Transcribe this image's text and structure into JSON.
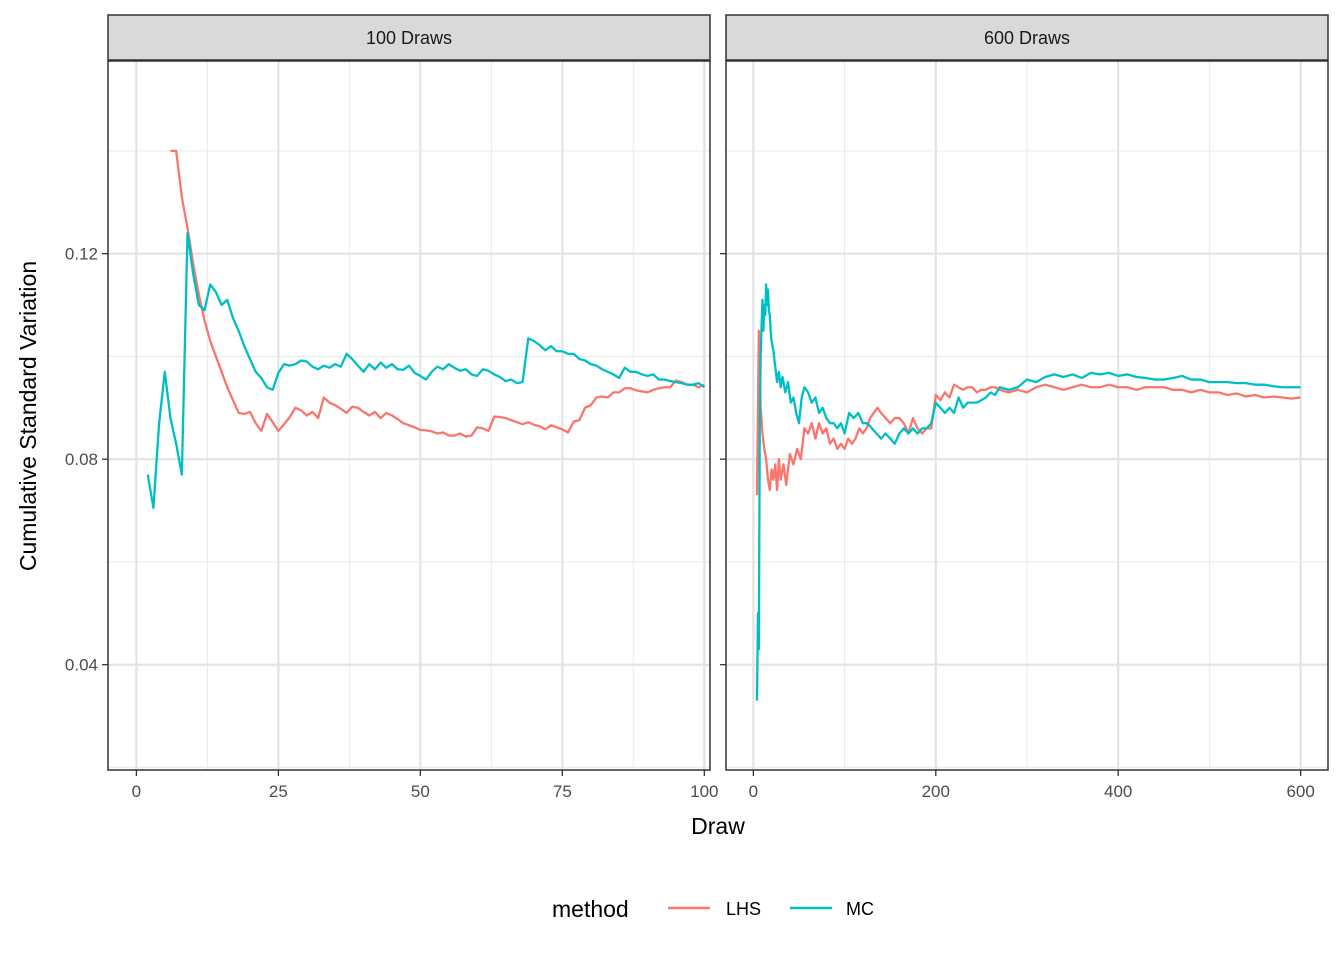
{
  "chart_data": {
    "type": "line",
    "xlabel": "Draw",
    "ylabel": "Cumulative Standard Variation",
    "legend": {
      "title": "method",
      "placement": "bottom",
      "entries": [
        {
          "name": "LHS",
          "color": "#F8766D"
        },
        {
          "name": "MC",
          "color": "#00BFC4"
        }
      ]
    },
    "grid": true,
    "ylim": [
      0.0195,
      0.1575
    ],
    "yticks": [
      0.04,
      0.08,
      0.12
    ],
    "ytick_labels": [
      "0.04",
      "0.08",
      "0.12"
    ],
    "panels": [
      {
        "strip": "100 Draws",
        "xlim": [
          -5,
          101
        ],
        "xticks": [
          0,
          25,
          50,
          75,
          100
        ],
        "xtick_labels": [
          "0",
          "25",
          "50",
          "75",
          "100"
        ],
        "series": [
          {
            "name": "LHS",
            "color": "#F8766D",
            "x": [
              6,
              7,
              8,
              9,
              10,
              11,
              12,
              13,
              14,
              15,
              16,
              17,
              18,
              19,
              20,
              21,
              22,
              23,
              24,
              25,
              26,
              27,
              28,
              29,
              30,
              31,
              32,
              33,
              34,
              35,
              36,
              37,
              38,
              39,
              40,
              41,
              42,
              43,
              44,
              45,
              46,
              47,
              48,
              49,
              50,
              51,
              52,
              53,
              54,
              55,
              56,
              57,
              58,
              59,
              60,
              61,
              62,
              63,
              64,
              65,
              66,
              67,
              68,
              69,
              70,
              71,
              72,
              73,
              74,
              75,
              76,
              77,
              78,
              79,
              80,
              81,
              82,
              83,
              84,
              85,
              86,
              87,
              88,
              89,
              90,
              91,
              92,
              93,
              94,
              95,
              96,
              97,
              98,
              99,
              100
            ],
            "y": [
              0.14,
              0.14,
              0.131,
              0.125,
              0.118,
              0.112,
              0.107,
              0.103,
              0.1,
              0.097,
              0.094,
              0.0915,
              0.089,
              0.0888,
              0.0892,
              0.087,
              0.0855,
              0.0888,
              0.0872,
              0.0855,
              0.0868,
              0.0882,
              0.09,
              0.0895,
              0.0885,
              0.0892,
              0.088,
              0.092,
              0.091,
              0.0905,
              0.0898,
              0.089,
              0.0902,
              0.09,
              0.0892,
              0.0885,
              0.0892,
              0.088,
              0.089,
              0.0885,
              0.0878,
              0.087,
              0.0866,
              0.0862,
              0.0857,
              0.0856,
              0.0854,
              0.085,
              0.0852,
              0.0846,
              0.0846,
              0.085,
              0.0844,
              0.0846,
              0.0862,
              0.086,
              0.0855,
              0.0883,
              0.0882,
              0.088,
              0.0876,
              0.0872,
              0.0868,
              0.0872,
              0.0867,
              0.0864,
              0.0858,
              0.0866,
              0.0862,
              0.0858,
              0.0852,
              0.0873,
              0.0876,
              0.09,
              0.0905,
              0.092,
              0.0922,
              0.092,
              0.093,
              0.093,
              0.0938,
              0.0938,
              0.0934,
              0.0932,
              0.093,
              0.0935,
              0.0938,
              0.094,
              0.094,
              0.0953,
              0.095,
              0.0945,
              0.0945,
              0.094,
              0.0945
            ]
          },
          {
            "name": "MC",
            "color": "#00BFC4",
            "x": [
              2,
              3,
              4,
              5,
              6,
              7,
              8,
              9,
              10,
              11,
              12,
              13,
              14,
              15,
              16,
              17,
              18,
              19,
              20,
              21,
              22,
              23,
              24,
              25,
              26,
              27,
              28,
              29,
              30,
              31,
              32,
              33,
              34,
              35,
              36,
              37,
              38,
              39,
              40,
              41,
              42,
              43,
              44,
              45,
              46,
              47,
              48,
              49,
              50,
              51,
              52,
              53,
              54,
              55,
              56,
              57,
              58,
              59,
              60,
              61,
              62,
              63,
              64,
              65,
              66,
              67,
              68,
              69,
              70,
              71,
              72,
              73,
              74,
              75,
              76,
              77,
              78,
              79,
              80,
              81,
              82,
              83,
              84,
              85,
              86,
              87,
              88,
              89,
              90,
              91,
              92,
              93,
              94,
              95,
              96,
              97,
              98,
              99,
              100
            ],
            "y": [
              0.077,
              0.0705,
              0.087,
              0.097,
              0.088,
              0.083,
              0.077,
              0.124,
              0.116,
              0.11,
              0.109,
              0.114,
              0.1125,
              0.11,
              0.111,
              0.1075,
              0.105,
              0.102,
              0.0995,
              0.097,
              0.0958,
              0.094,
              0.0935,
              0.0968,
              0.0985,
              0.0982,
              0.0985,
              0.0992,
              0.099,
              0.098,
              0.0975,
              0.0982,
              0.0978,
              0.0985,
              0.098,
              0.1005,
              0.0995,
              0.0982,
              0.097,
              0.0985,
              0.0975,
              0.0988,
              0.0978,
              0.0985,
              0.0975,
              0.0974,
              0.0982,
              0.0968,
              0.0962,
              0.0955,
              0.097,
              0.098,
              0.0975,
              0.0985,
              0.0978,
              0.0972,
              0.0975,
              0.0965,
              0.0962,
              0.0975,
              0.0972,
              0.0965,
              0.096,
              0.0952,
              0.0955,
              0.0948,
              0.095,
              0.1035,
              0.103,
              0.1022,
              0.1012,
              0.102,
              0.101,
              0.101,
              0.1005,
              0.1005,
              0.0995,
              0.0992,
              0.0985,
              0.0982,
              0.0975,
              0.097,
              0.0965,
              0.0958,
              0.0978,
              0.097,
              0.097,
              0.0965,
              0.0962,
              0.0965,
              0.0955,
              0.0955,
              0.0952,
              0.095,
              0.0948,
              0.0945,
              0.0945,
              0.0948,
              0.094
            ]
          }
        ]
      },
      {
        "strip": "600 Draws",
        "xlim": [
          -30,
          630
        ],
        "xticks": [
          0,
          200,
          400,
          600
        ],
        "xtick_labels": [
          "0",
          "200",
          "400",
          "600"
        ],
        "series": [
          {
            "name": "LHS",
            "color": "#F8766D",
            "x": [
              4,
              6,
              8,
              10,
              12,
              14,
              16,
              18,
              20,
              22,
              24,
              26,
              28,
              30,
              33,
              36,
              40,
              44,
              48,
              52,
              56,
              60,
              64,
              68,
              72,
              76,
              80,
              84,
              88,
              92,
              96,
              100,
              104,
              108,
              112,
              116,
              120,
              124,
              128,
              132,
              136,
              140,
              145,
              150,
              155,
              160,
              165,
              170,
              175,
              180,
              185,
              190,
              195,
              200,
              205,
              210,
              215,
              220,
              225,
              230,
              235,
              240,
              245,
              250,
              255,
              260,
              265,
              270,
              280,
              290,
              300,
              310,
              320,
              330,
              340,
              350,
              360,
              370,
              380,
              390,
              400,
              410,
              420,
              430,
              440,
              450,
              460,
              470,
              480,
              490,
              500,
              510,
              520,
              530,
              540,
              550,
              560,
              570,
              580,
              590,
              600
            ],
            "y": [
              0.073,
              0.105,
              0.09,
              0.085,
              0.082,
              0.08,
              0.076,
              0.074,
              0.078,
              0.076,
              0.079,
              0.074,
              0.08,
              0.076,
              0.079,
              0.075,
              0.081,
              0.079,
              0.082,
              0.08,
              0.086,
              0.085,
              0.087,
              0.084,
              0.087,
              0.085,
              0.086,
              0.083,
              0.084,
              0.082,
              0.083,
              0.082,
              0.084,
              0.083,
              0.084,
              0.086,
              0.085,
              0.086,
              0.088,
              0.089,
              0.09,
              0.089,
              0.088,
              0.087,
              0.088,
              0.088,
              0.087,
              0.085,
              0.088,
              0.086,
              0.085,
              0.086,
              0.086,
              0.0925,
              0.0915,
              0.093,
              0.092,
              0.0945,
              0.094,
              0.0935,
              0.094,
              0.094,
              0.093,
              0.0935,
              0.0935,
              0.094,
              0.094,
              0.0935,
              0.093,
              0.0935,
              0.093,
              0.094,
              0.0945,
              0.094,
              0.0935,
              0.094,
              0.0945,
              0.094,
              0.094,
              0.0945,
              0.094,
              0.094,
              0.0935,
              0.094,
              0.094,
              0.094,
              0.0935,
              0.0935,
              0.093,
              0.0935,
              0.093,
              0.093,
              0.0925,
              0.0928,
              0.0922,
              0.0925,
              0.092,
              0.0922,
              0.092,
              0.0918,
              0.092
            ]
          },
          {
            "name": "MC",
            "color": "#00BFC4",
            "x": [
              4,
              5,
              6,
              7,
              8,
              9,
              10,
              11,
              12,
              13,
              14,
              15,
              16,
              17,
              18,
              19,
              20,
              22,
              24,
              26,
              28,
              30,
              32,
              35,
              38,
              41,
              44,
              47,
              50,
              53,
              56,
              60,
              64,
              68,
              72,
              76,
              80,
              84,
              88,
              92,
              96,
              100,
              105,
              110,
              115,
              120,
              125,
              130,
              135,
              140,
              145,
              150,
              155,
              160,
              165,
              170,
              175,
              180,
              185,
              190,
              195,
              200,
              205,
              210,
              215,
              220,
              225,
              230,
              235,
              240,
              245,
              250,
              255,
              260,
              265,
              270,
              280,
              290,
              300,
              310,
              320,
              330,
              340,
              350,
              360,
              370,
              380,
              390,
              400,
              410,
              420,
              430,
              440,
              450,
              460,
              470,
              480,
              490,
              500,
              510,
              520,
              530,
              540,
              550,
              560,
              570,
              580,
              590,
              600
            ],
            "y": [
              0.033,
              0.05,
              0.043,
              0.085,
              0.1,
              0.106,
              0.111,
              0.105,
              0.11,
              0.108,
              0.114,
              0.11,
              0.113,
              0.109,
              0.108,
              0.105,
              0.103,
              0.101,
              0.098,
              0.095,
              0.097,
              0.094,
              0.096,
              0.093,
              0.095,
              0.091,
              0.092,
              0.089,
              0.087,
              0.092,
              0.094,
              0.093,
              0.091,
              0.092,
              0.089,
              0.09,
              0.088,
              0.087,
              0.087,
              0.086,
              0.087,
              0.085,
              0.089,
              0.088,
              0.089,
              0.087,
              0.087,
              0.086,
              0.085,
              0.084,
              0.085,
              0.084,
              0.083,
              0.085,
              0.086,
              0.085,
              0.086,
              0.085,
              0.086,
              0.086,
              0.087,
              0.091,
              0.09,
              0.089,
              0.09,
              0.089,
              0.092,
              0.09,
              0.091,
              0.091,
              0.091,
              0.0915,
              0.092,
              0.093,
              0.0925,
              0.094,
              0.0935,
              0.094,
              0.0955,
              0.095,
              0.096,
              0.0965,
              0.096,
              0.0965,
              0.0958,
              0.0968,
              0.0965,
              0.0968,
              0.0962,
              0.0965,
              0.096,
              0.0958,
              0.0955,
              0.0955,
              0.0958,
              0.0962,
              0.0955,
              0.0955,
              0.095,
              0.095,
              0.095,
              0.0948,
              0.0948,
              0.0945,
              0.0945,
              0.0942,
              0.094,
              0.094,
              0.094
            ]
          }
        ]
      }
    ]
  }
}
